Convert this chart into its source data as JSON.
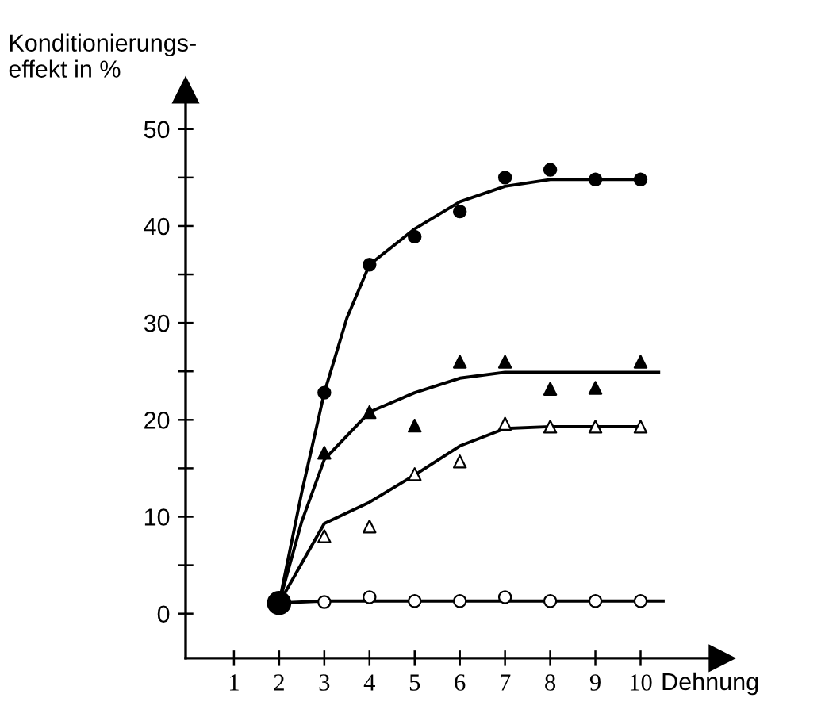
{
  "chart_data": {
    "type": "scatter",
    "ylabel": "Konditionierungs-\neffekt in %",
    "xlabel": "Dehnung",
    "xlim": [
      -0.07,
      11.8
    ],
    "ylim": [
      -4.6,
      54
    ],
    "xticks": [
      1,
      2,
      3,
      4,
      5,
      6,
      7,
      8,
      9,
      10
    ],
    "yticks": [
      0,
      {
        "value": 5,
        "label": null
      },
      10,
      {
        "value": 15,
        "label": null
      },
      20,
      {
        "value": 25,
        "label": null
      },
      30,
      {
        "value": 35,
        "label": null
      },
      40,
      {
        "value": 45,
        "label": null
      },
      50
    ],
    "grid": false,
    "legend": false,
    "series": [
      {
        "marker": "circle",
        "color": "#000000",
        "x": [
          3,
          4,
          5,
          6,
          7,
          8,
          9,
          10
        ],
        "values": [
          22.8,
          36.0,
          38.9,
          41.5,
          45.0,
          45.8,
          44.8,
          44.8
        ]
      },
      {
        "marker": "triangle",
        "color": "#000000",
        "x": [
          3,
          4,
          5,
          6,
          7,
          8,
          9,
          10
        ],
        "values": [
          16.6,
          20.8,
          19.4,
          26.0,
          26.0,
          23.2,
          23.3,
          26.0
        ]
      },
      {
        "marker": "triangle",
        "color": "#ffffff",
        "x": [
          3,
          4,
          5,
          6,
          7,
          8,
          9,
          10
        ],
        "values": [
          8.0,
          9.0,
          14.4,
          15.7,
          19.6,
          19.3,
          19.3,
          19.3
        ]
      },
      {
        "marker": "circle",
        "color": "#ffffff",
        "x": [
          3,
          4,
          5,
          6,
          7,
          8,
          9,
          10
        ],
        "values": [
          1.2,
          1.7,
          1.3,
          1.3,
          1.7,
          1.3,
          1.3,
          1.3
        ]
      },
      {
        "type": "line",
        "marker": "none",
        "line_style": "solid",
        "color": "#000000",
        "x": [
          2,
          2.5,
          3,
          3.5,
          4,
          5,
          6,
          7,
          8,
          9,
          10
        ],
        "values": [
          1.1,
          12.5,
          22.8,
          30.5,
          36.0,
          39.7,
          42.5,
          44.1,
          44.8,
          44.8,
          44.8
        ]
      },
      {
        "type": "line",
        "marker": "none",
        "line_style": "solid",
        "color": "#000000",
        "x": [
          2,
          2.5,
          3,
          4,
          5,
          6,
          7,
          8,
          9,
          10.4
        ],
        "values": [
          1.1,
          9.5,
          15.9,
          20.8,
          22.8,
          24.3,
          24.9,
          24.9,
          24.9,
          24.9
        ]
      },
      {
        "type": "line",
        "marker": "none",
        "line_style": "solid",
        "color": "#000000",
        "x": [
          2,
          3,
          4,
          5,
          6,
          7,
          8,
          9,
          10
        ],
        "values": [
          1.1,
          9.3,
          11.5,
          14.3,
          17.3,
          19.1,
          19.3,
          19.3,
          19.3
        ]
      },
      {
        "type": "line",
        "marker": "none",
        "line_style": "solid",
        "color": "#000000",
        "x": [
          2,
          3,
          4,
          5,
          6,
          7,
          8,
          9,
          10.5
        ],
        "values": [
          1.1,
          1.3,
          1.3,
          1.3,
          1.3,
          1.3,
          1.3,
          1.3,
          1.3
        ]
      },
      {
        "marker": "circle",
        "color": "#000000",
        "x": [
          2
        ],
        "values": [
          1.1
        ],
        "sizes": [
          1
        ]
      }
    ]
  }
}
